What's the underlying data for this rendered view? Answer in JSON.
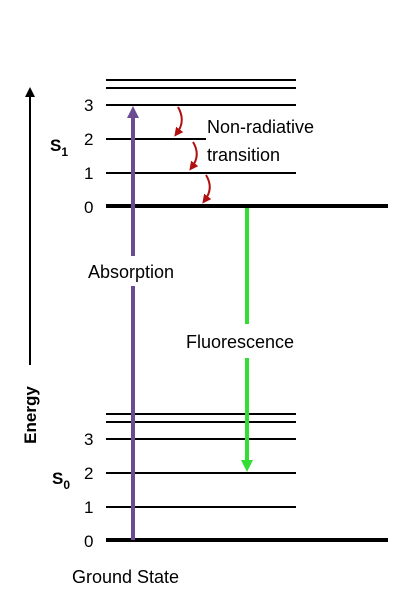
{
  "diagram": {
    "energy_label": "Energy",
    "excited_state": {
      "letter": "S",
      "subscript": "1"
    },
    "ground_state": {
      "letter": "S",
      "subscript": "0"
    },
    "s1_levels": [
      "3",
      "2",
      "1",
      "0"
    ],
    "s0_levels": [
      "3",
      "2",
      "1",
      "0"
    ],
    "absorption_label": "Absorption",
    "fluorescence_label": "Fluorescence",
    "nonradiative_label_line1": "Non-radiative",
    "nonradiative_label_line2": "transition",
    "ground_state_label": "Ground State",
    "colors": {
      "absorption": "#6b4c93",
      "fluorescence": "#33dd33",
      "nonradiative": "#b01010",
      "levels": "#000000"
    }
  }
}
